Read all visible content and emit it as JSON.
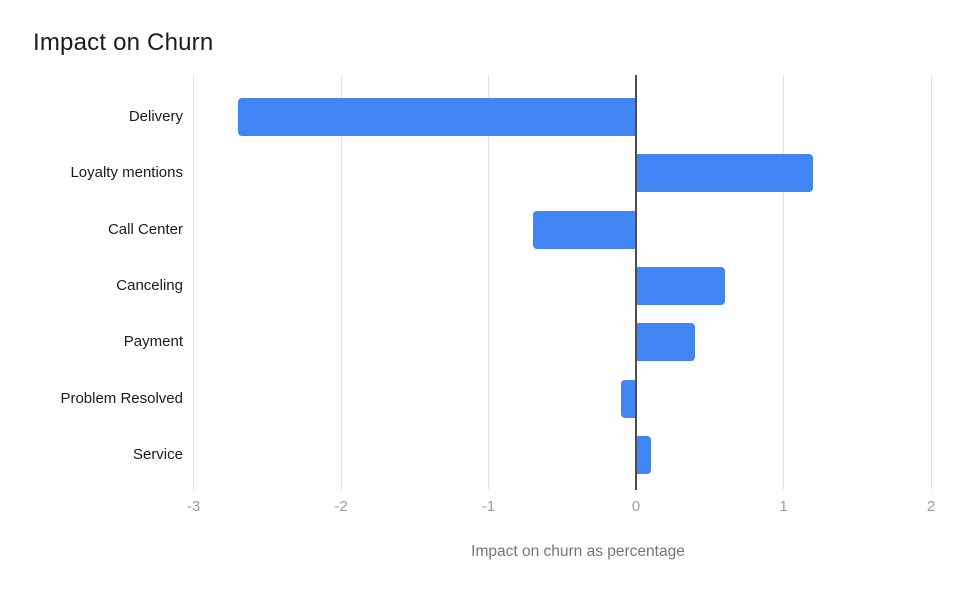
{
  "title": "Impact on Churn",
  "chart_data": {
    "type": "bar",
    "orientation": "horizontal",
    "title": "Impact on Churn",
    "xlabel": "Impact on churn as percentage",
    "ylabel": "",
    "categories": [
      "Delivery",
      "Loyalty mentions",
      "Call Center",
      "Canceling",
      "Payment",
      "Problem Resolved",
      "Service"
    ],
    "values": [
      -2.7,
      1.2,
      -0.7,
      0.6,
      0.4,
      -0.1,
      0.1
    ],
    "xlim": [
      -3,
      2
    ],
    "xticks": [
      -3,
      -2,
      -1,
      0,
      1,
      2
    ],
    "grid": true,
    "legend": "none",
    "baseline": 0
  },
  "colors": {
    "bar": "#4285f4",
    "gridline": "#e3e3e3",
    "zero_line": "#4d4d4d",
    "title_text": "#1b1b1b",
    "category_text": "#1b1b1b",
    "tick_text": "#9e9e9e",
    "axis_title_text": "#757575",
    "background": "#ffffff"
  }
}
